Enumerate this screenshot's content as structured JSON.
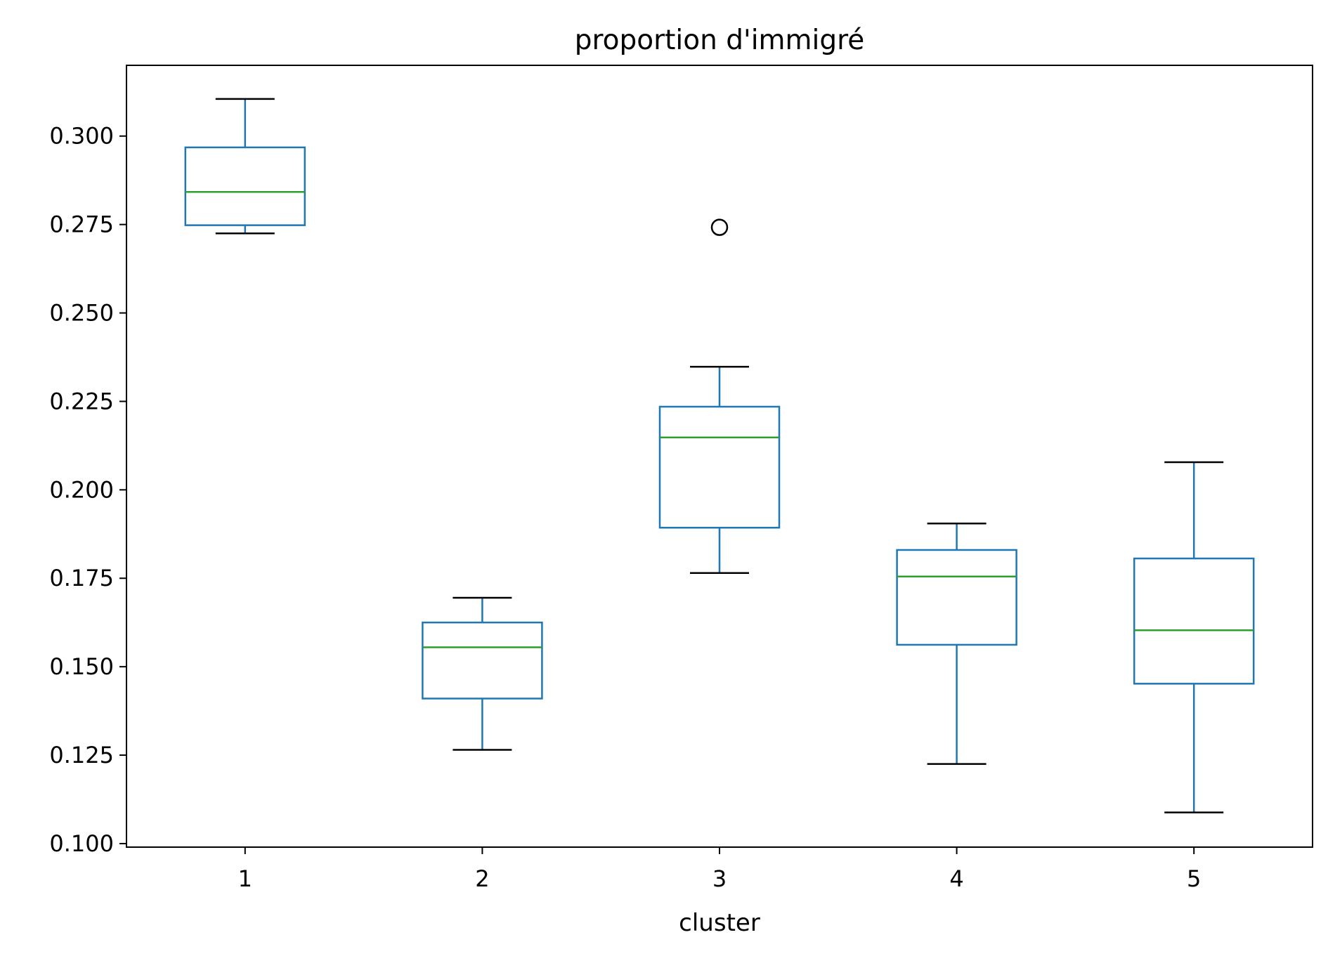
{
  "chart_data": {
    "type": "box",
    "title": "proportion d'immigré",
    "xlabel": "cluster",
    "ylabel": "",
    "ylim": [
      0.099,
      0.32
    ],
    "yticks": [
      0.1,
      0.125,
      0.15,
      0.175,
      0.2,
      0.225,
      0.25,
      0.275,
      0.3
    ],
    "ytick_labels": [
      "0.100",
      "0.125",
      "0.150",
      "0.175",
      "0.200",
      "0.225",
      "0.250",
      "0.275",
      "0.300"
    ],
    "categories": [
      "1",
      "2",
      "3",
      "4",
      "5"
    ],
    "boxes": [
      {
        "category": "1",
        "whisker_low": 0.2725,
        "q1": 0.2748,
        "median": 0.2842,
        "q3": 0.2968,
        "whisker_high": 0.3105,
        "outliers": []
      },
      {
        "category": "2",
        "whisker_low": 0.1265,
        "q1": 0.141,
        "median": 0.1555,
        "q3": 0.1625,
        "whisker_high": 0.1695,
        "outliers": []
      },
      {
        "category": "3",
        "whisker_low": 0.1765,
        "q1": 0.1893,
        "median": 0.2148,
        "q3": 0.2235,
        "whisker_high": 0.2348,
        "outliers": [
          0.2742
        ]
      },
      {
        "category": "4",
        "whisker_low": 0.1225,
        "q1": 0.1562,
        "median": 0.1755,
        "q3": 0.183,
        "whisker_high": 0.1905,
        "outliers": []
      },
      {
        "category": "5",
        "whisker_low": 0.1088,
        "q1": 0.1452,
        "median": 0.1603,
        "q3": 0.1806,
        "whisker_high": 0.2078,
        "outliers": []
      }
    ],
    "colors": {
      "box": "#1f77b4",
      "median": "#2ca02c",
      "whisker_cap": "#000000",
      "outlier": "#000000",
      "axes": "#000000"
    },
    "grid": false,
    "legend": "none"
  }
}
